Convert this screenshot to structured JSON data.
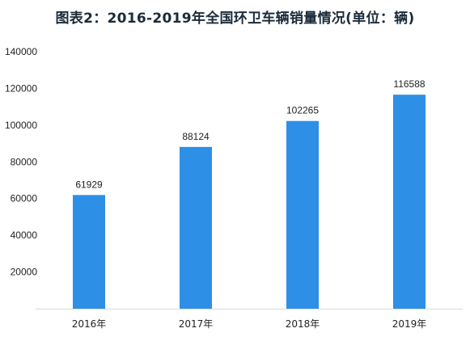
{
  "chart_data": {
    "type": "bar",
    "title": "图表2：2016-2019年全国环卫车辆销量情况(单位：辆)",
    "categories": [
      "2016年",
      "2017年",
      "2018年",
      "2019年"
    ],
    "values": [
      61929,
      88124,
      102265,
      116588
    ],
    "data_labels": [
      "61929",
      "88124",
      "102265",
      "116588"
    ],
    "ylim": [
      0,
      140000
    ],
    "yticks": [
      0,
      20000,
      40000,
      60000,
      80000,
      100000,
      120000,
      140000
    ],
    "ytick_labels": [
      "",
      "20000",
      "40000",
      "60000",
      "80000",
      "100000",
      "120000",
      "140000"
    ],
    "xlabel": "",
    "ylabel": "",
    "grid": false,
    "bar_color": "#2E8FE6"
  }
}
